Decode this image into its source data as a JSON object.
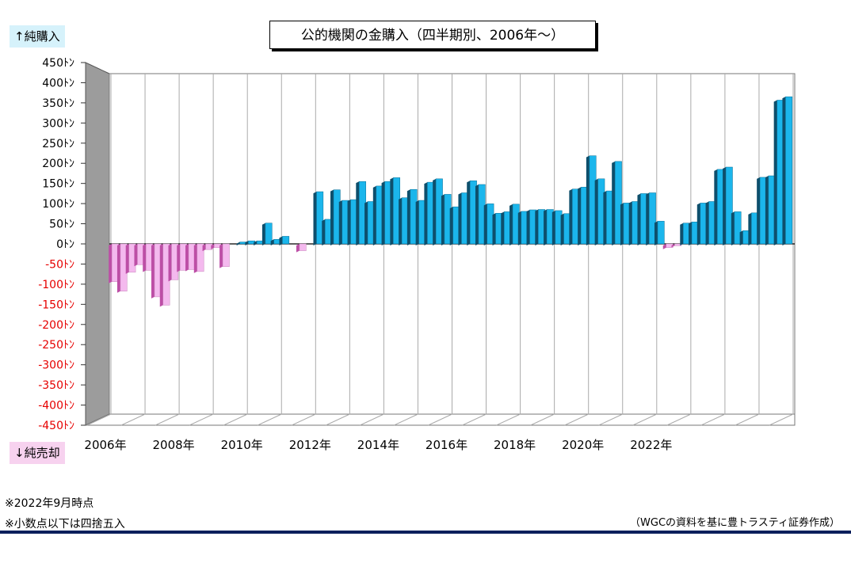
{
  "header": {
    "title": "公的機関の金購入（四半期別、2006年～）",
    "buy_label": "↑純購入",
    "sell_label": "↓純売却"
  },
  "notes": {
    "note1": "※2022年9月時点",
    "note2": "※小数点以下は四捨五入",
    "source": "（WGCの資料を基に豊トラスティ証券作成）"
  },
  "colors": {
    "positive_front": "#1bb6ec",
    "positive_side": "#0e4f6c",
    "negative_front": "#f4b9ee",
    "negative_side": "#bd4ea6",
    "axis_positive_text": "#000000",
    "axis_negative_text": "#e60000",
    "wall": "#9c9c9c"
  },
  "chart_data": {
    "type": "bar",
    "title": "公的機関の金購入（四半期別、2006年～）",
    "ylabel": "",
    "xlabel": "",
    "ylim": [
      -450,
      450
    ],
    "y_ticks": [
      450,
      400,
      350,
      300,
      250,
      200,
      150,
      100,
      50,
      0,
      -50,
      -100,
      -150,
      -200,
      -250,
      -300,
      -350,
      -400,
      -450
    ],
    "y_tick_labels": [
      "450ﾄﾝ",
      "400ﾄﾝ",
      "350ﾄﾝ",
      "300ﾄﾝ",
      "250ﾄﾝ",
      "200ﾄﾝ",
      "150ﾄﾝ",
      "100ﾄﾝ",
      "50ﾄﾝ",
      "0ﾄﾝ",
      "-50ﾄﾝ",
      "-100ﾄﾝ",
      "-150ﾄﾝ",
      "-200ﾄﾝ",
      "-250ﾄﾝ",
      "-300ﾄﾝ",
      "-350ﾄﾝ",
      "-400ﾄﾝ",
      "-450ﾄﾝ"
    ],
    "x_tick_labels": [
      "2006年",
      "2008年",
      "2010年",
      "2012年",
      "2014年",
      "2016年",
      "2018年",
      "2020年",
      "2022年"
    ],
    "grid": true,
    "start_year": 2006,
    "quarters_per_label": 8,
    "series": [
      {
        "values": [
          -100,
          -125,
          -75,
          -55,
          -70,
          -140,
          -162,
          -95,
          -70,
          -68,
          -73,
          -15,
          -10,
          -60,
          0,
          5,
          8,
          8,
          55,
          12,
          20,
          0,
          -18,
          0,
          138,
          65,
          143,
          115,
          117,
          165,
          112,
          153,
          165,
          175,
          122,
          144,
          115,
          163,
          172,
          131,
          98,
          135,
          167,
          157,
          106,
          81,
          85,
          105,
          86,
          90,
          91,
          91,
          88,
          80,
          145,
          150,
          233,
          172,
          140,
          218,
          108,
          112,
          133,
          135,
          60,
          -10,
          -5,
          55,
          58,
          108,
          112,
          197,
          203,
          85,
          35,
          82,
          176,
          180,
          380,
          389
        ]
      }
    ]
  }
}
